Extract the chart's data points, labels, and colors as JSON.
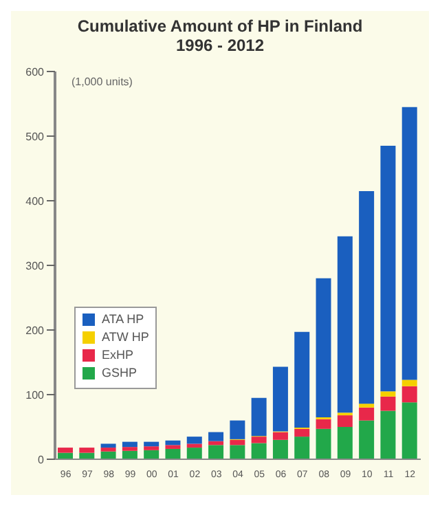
{
  "chart_data": {
    "type": "bar",
    "title": "Cumulative Amount of HP in Finland",
    "subtitle": "1996 - 2012",
    "ylabel": "(1,000 units)",
    "categories": [
      "96",
      "97",
      "98",
      "99",
      "00",
      "01",
      "02",
      "03",
      "04",
      "05",
      "06",
      "07",
      "08",
      "09",
      "10",
      "11",
      "12"
    ],
    "stacked": true,
    "ylim": [
      0,
      600
    ],
    "yticks": [
      0,
      100,
      200,
      300,
      400,
      500,
      600
    ],
    "grid": false,
    "legend": "left",
    "series": [
      {
        "name": "GSHP",
        "color": "#22a84a",
        "values": [
          10,
          10,
          12,
          13,
          14,
          16,
          18,
          22,
          22,
          25,
          30,
          35,
          47,
          50,
          60,
          75,
          88
        ]
      },
      {
        "name": "ExHP",
        "color": "#e8284a",
        "values": [
          8,
          8,
          6,
          6,
          6,
          6,
          6,
          6,
          8,
          10,
          12,
          12,
          15,
          18,
          20,
          22,
          25
        ]
      },
      {
        "name": "ATW HP",
        "color": "#f5d000",
        "values": [
          0,
          0,
          0,
          0,
          0,
          0,
          0,
          0,
          1,
          1,
          1,
          2,
          3,
          4,
          6,
          8,
          10
        ]
      },
      {
        "name": "ATA HP",
        "color": "#1a5fbf",
        "values": [
          0,
          0,
          6,
          8,
          7,
          7,
          11,
          14,
          29,
          59,
          100,
          148,
          215,
          273,
          329,
          380,
          422
        ]
      }
    ]
  }
}
